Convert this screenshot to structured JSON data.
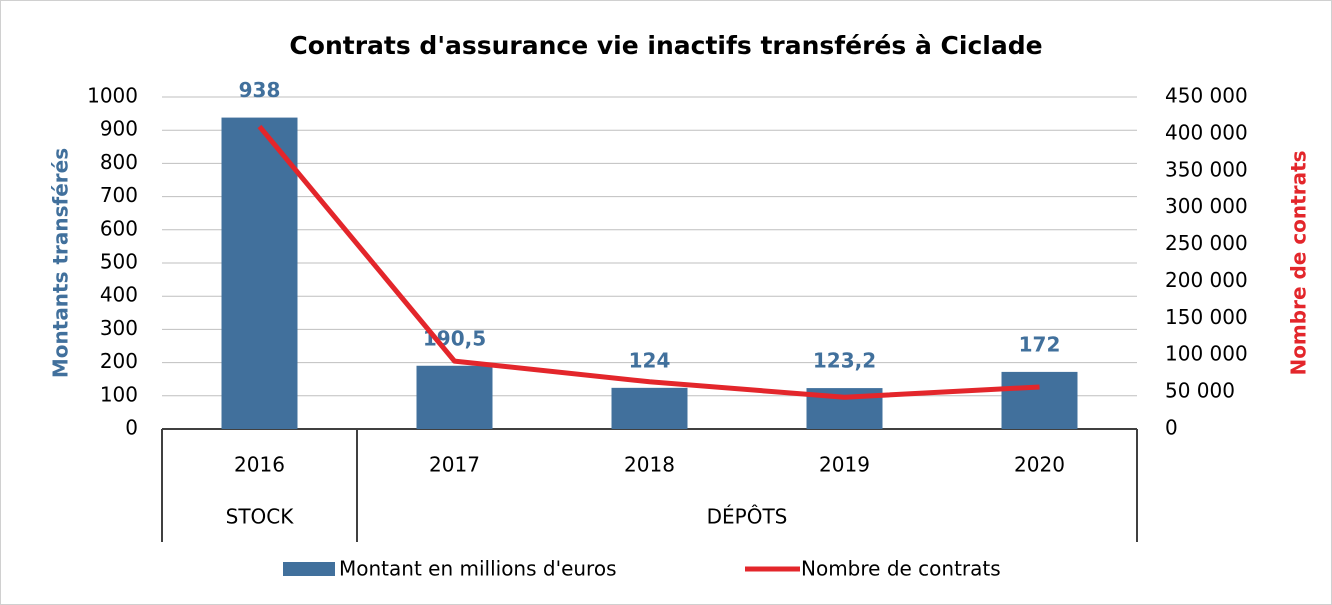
{
  "chart_data": {
    "type": "bar_line",
    "title": "Contrats d'assurance vie inactifs transférés à Ciclade",
    "categories": [
      "2016",
      "2017",
      "2018",
      "2019",
      "2020"
    ],
    "category_groups": [
      {
        "name": "STOCK",
        "count": 1
      },
      {
        "name": "DÉPÔTS",
        "count": 4
      }
    ],
    "ylabel": "Montants transférés",
    "y2label": "Nombre de contrats",
    "ylim": [
      0,
      1000
    ],
    "yticks": [
      0,
      100,
      200,
      300,
      400,
      500,
      600,
      700,
      800,
      900,
      1000
    ],
    "y2lim": [
      0,
      450000
    ],
    "y2ticks": [
      {
        "value": 0,
        "label": "0"
      },
      {
        "value": 50000,
        "label": "50 000"
      },
      {
        "value": 100000,
        "label": "100 000"
      },
      {
        "value": 150000,
        "label": "150 000"
      },
      {
        "value": 200000,
        "label": "200 000"
      },
      {
        "value": 250000,
        "label": "250 000"
      },
      {
        "value": 300000,
        "label": "300 000"
      },
      {
        "value": 350000,
        "label": "350 000"
      },
      {
        "value": 400000,
        "label": "400 000"
      },
      {
        "value": 450000,
        "label": "450 000"
      }
    ],
    "grid": true,
    "legend": "bottom",
    "series": [
      {
        "name": "Montant en millions d'euros",
        "type": "bar",
        "color": "#41709c",
        "values": [
          938,
          190.5,
          124,
          123.2,
          172
        ],
        "value_labels": [
          "938",
          "190,5",
          "124",
          "123,2",
          "172"
        ]
      },
      {
        "name": "Nombre de contrats",
        "type": "line",
        "axis": "y2",
        "color": "#e3262b",
        "values": [
          410000,
          92000,
          64000,
          43000,
          57000
        ]
      }
    ]
  }
}
